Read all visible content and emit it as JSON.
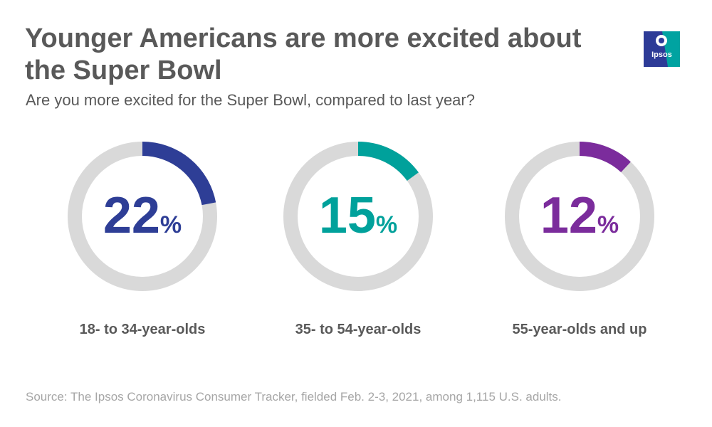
{
  "title": "Younger Americans are more excited about the Super Bowl",
  "subtitle": "Are you more excited for the Super Bowl, compared to last year?",
  "logo": {
    "text": "Ipsos",
    "color_primary": "#2d3b97",
    "color_secondary": "#00a3a1"
  },
  "source": "Source: The Ipsos Coronavirus Consumer Tracker, fielded Feb. 2-3, 2021, among 1,115 U.S. adults.",
  "chart_data": {
    "type": "donut",
    "categories": [
      "18- to 34-year-olds",
      "35- to 54-year-olds",
      "55-year-olds and up"
    ],
    "values": [
      22,
      15,
      12
    ],
    "value_labels": [
      "22",
      "15",
      "12"
    ],
    "unit": "%",
    "colors": [
      "#2e3e96",
      "#00a19b",
      "#7b2c9c"
    ],
    "track_color": "#d9d9d9",
    "max": 100
  }
}
